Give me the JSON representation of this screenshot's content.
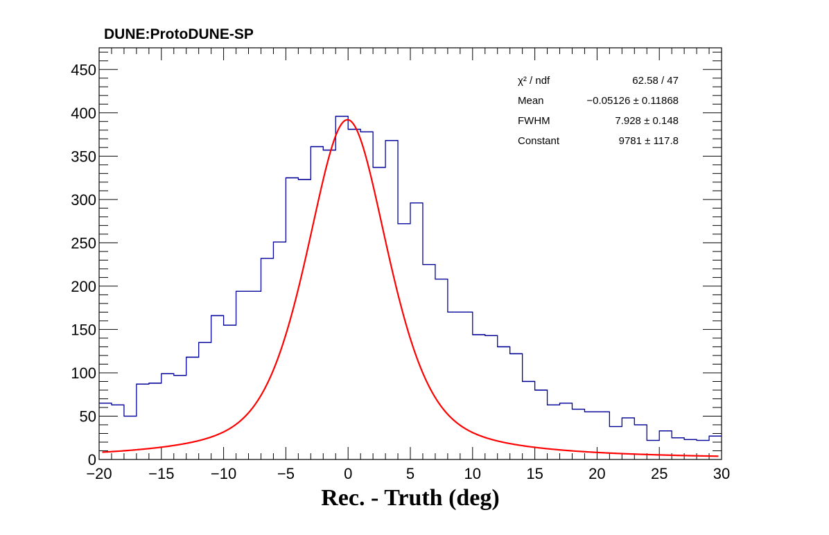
{
  "chart_data": {
    "type": "histogram",
    "title": "DUNE:ProtoDUNE-SP",
    "xlabel": "Rec. - Truth (deg)",
    "ylabel": "",
    "xlim": [
      -20,
      30
    ],
    "ylim": [
      0,
      475
    ],
    "x_ticks": [
      -20,
      -15,
      -10,
      -5,
      0,
      5,
      10,
      15,
      20,
      25,
      30
    ],
    "x_tick_labels": [
      "−20",
      "−15",
      "−10",
      "−5",
      "0",
      "5",
      "10",
      "15",
      "20",
      "25",
      "30"
    ],
    "y_ticks": [
      0,
      50,
      100,
      150,
      200,
      250,
      300,
      350,
      400,
      450
    ],
    "y_tick_labels": [
      "0",
      "50",
      "100",
      "150",
      "200",
      "250",
      "300",
      "350",
      "400",
      "450"
    ],
    "grid": false,
    "series": [
      {
        "kind": "histogram",
        "color": "#000099",
        "bin_edges": [
          -20,
          -19,
          -18,
          -17,
          -16,
          -15,
          -14,
          -13,
          -12,
          -11,
          -10,
          -9,
          -8,
          -7,
          -6,
          -5,
          -4,
          -3,
          -2,
          -1,
          0,
          1,
          2,
          3,
          4,
          5,
          6,
          7,
          8,
          9,
          10,
          11,
          12,
          13,
          14,
          15,
          16,
          17,
          18,
          19,
          20,
          21,
          22,
          23,
          24,
          25,
          26,
          27,
          28,
          29,
          30
        ],
        "counts": [
          65,
          63,
          50,
          87,
          88,
          99,
          97,
          118,
          135,
          166,
          155,
          194,
          194,
          232,
          251,
          325,
          323,
          361,
          357,
          396,
          381,
          378,
          337,
          368,
          272,
          296,
          225,
          208,
          170,
          170,
          144,
          143,
          130,
          122,
          90,
          80,
          63,
          65,
          58,
          55,
          55,
          38,
          48,
          40,
          22,
          33,
          25,
          23,
          22,
          27
        ]
      },
      {
        "kind": "fit",
        "color": "#ff0000",
        "function": "voigt",
        "mean": -0.05126,
        "fwhm": 7.928,
        "constant": 9781
      }
    ],
    "stats_box": {
      "position": "top-right",
      "rows": [
        {
          "label": "χ² / ndf",
          "value": "62.58 / 47"
        },
        {
          "label": "Mean",
          "value": "−0.05126 ± 0.11868"
        },
        {
          "label": "FWHM",
          "value": "7.928 ± 0.148"
        },
        {
          "label": "Constant",
          "value": "9781 ± 117.8"
        }
      ]
    }
  }
}
